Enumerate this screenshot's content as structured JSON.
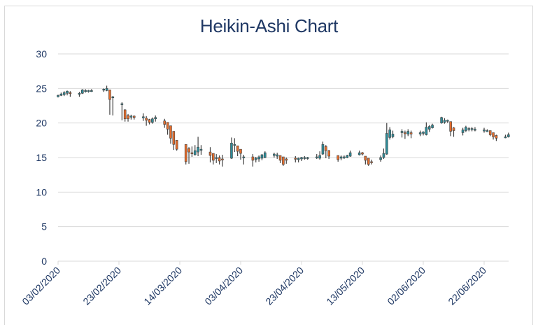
{
  "chart_data": {
    "type": "candlestick",
    "variant": "heikin-ashi",
    "title": "Heikin-Ashi Chart",
    "xlabel": "",
    "ylabel": "",
    "ylim": [
      0,
      30
    ],
    "yticks": [
      0,
      5,
      10,
      15,
      20,
      25,
      30
    ],
    "grid": true,
    "legend": "none",
    "x_tick_labels": [
      "03/02/2020",
      "23/02/2020",
      "14/03/2020",
      "03/04/2020",
      "23/04/2020",
      "13/05/2020",
      "02/06/2020",
      "22/06/2020"
    ],
    "x_start": "03/02/2020",
    "x_end_day_offset": 148,
    "colors": {
      "up": "#2e8b98",
      "down": "#e36c2c",
      "wick": "#404040",
      "grid": "#d9d9d9",
      "text": "#1f3864"
    },
    "candles_fields": [
      "day_offset",
      "open",
      "high",
      "low",
      "close"
    ],
    "candles": [
      [
        0,
        23.8,
        24.1,
        23.7,
        24.0
      ],
      [
        1,
        24.0,
        24.4,
        23.9,
        24.2
      ],
      [
        2,
        24.1,
        24.6,
        23.9,
        24.4
      ],
      [
        3,
        24.3,
        24.7,
        24.0,
        24.6
      ],
      [
        4,
        24.4,
        24.6,
        23.8,
        24.3
      ],
      [
        7,
        24.2,
        24.5,
        23.8,
        24.3
      ],
      [
        8,
        24.3,
        24.9,
        24.2,
        24.8
      ],
      [
        9,
        24.6,
        24.9,
        24.4,
        24.7
      ],
      [
        10,
        24.6,
        24.8,
        24.4,
        24.7
      ],
      [
        11,
        24.6,
        24.9,
        24.5,
        24.7
      ],
      [
        15,
        24.8,
        25.0,
        24.5,
        24.9
      ],
      [
        16,
        24.7,
        25.4,
        24.6,
        25.0
      ],
      [
        17,
        24.8,
        24.8,
        21.2,
        23.4
      ],
      [
        18,
        23.8,
        23.9,
        21.1,
        23.8
      ],
      [
        21,
        22.8,
        23.0,
        20.4,
        22.8
      ],
      [
        22,
        21.9,
        22.0,
        20.2,
        20.6
      ],
      [
        23,
        21.1,
        21.3,
        20.2,
        20.6
      ],
      [
        24,
        20.9,
        21.2,
        20.5,
        21.0
      ],
      [
        25,
        21.0,
        21.1,
        20.5,
        20.8
      ],
      [
        28,
        20.9,
        21.4,
        20.3,
        20.9
      ],
      [
        29,
        20.7,
        21.0,
        19.6,
        20.4
      ],
      [
        30,
        20.5,
        20.6,
        19.8,
        20.1
      ],
      [
        31,
        20.1,
        20.8,
        19.9,
        20.6
      ],
      [
        32,
        20.6,
        21.1,
        20.2,
        20.8
      ],
      [
        35,
        20.3,
        20.6,
        19.3,
        19.8
      ],
      [
        36,
        20.1,
        20.1,
        18.3,
        19.1
      ],
      [
        37,
        19.6,
        19.6,
        17.0,
        17.8
      ],
      [
        38,
        18.8,
        18.8,
        16.1,
        16.9
      ],
      [
        39,
        17.5,
        17.5,
        16.0,
        16.2
      ],
      [
        42,
        16.9,
        16.9,
        14.0,
        14.4
      ],
      [
        43,
        16.3,
        16.5,
        14.1,
        15.8
      ],
      [
        44,
        15.7,
        16.6,
        15.1,
        15.6
      ],
      [
        45,
        15.4,
        16.8,
        15.3,
        16.0
      ],
      [
        46,
        15.8,
        18.0,
        15.2,
        16.5
      ],
      [
        47,
        16.2,
        16.8,
        15.4,
        16.2
      ],
      [
        50,
        15.8,
        16.5,
        14.3,
        15.3
      ],
      [
        51,
        15.6,
        15.6,
        14.0,
        14.6
      ],
      [
        52,
        15.0,
        15.5,
        14.2,
        15.0
      ],
      [
        53,
        15.0,
        15.3,
        14.0,
        14.5
      ],
      [
        54,
        14.8,
        15.4,
        13.7,
        14.7
      ],
      [
        57,
        14.9,
        17.9,
        14.8,
        17.1
      ],
      [
        58,
        16.9,
        17.8,
        15.8,
        16.9
      ],
      [
        59,
        16.7,
        16.7,
        15.2,
        15.9
      ],
      [
        60,
        16.2,
        16.2,
        14.7,
        15.6
      ],
      [
        61,
        15.1,
        15.4,
        14.0,
        15.1
      ],
      [
        64,
        15.1,
        15.5,
        13.7,
        14.6
      ],
      [
        65,
        14.7,
        15.1,
        14.3,
        14.9
      ],
      [
        66,
        14.8,
        15.3,
        14.4,
        15.1
      ],
      [
        67,
        14.9,
        15.5,
        14.6,
        15.4
      ],
      [
        68,
        15.0,
        15.9,
        14.9,
        15.7
      ],
      [
        71,
        15.3,
        15.7,
        15.0,
        15.5
      ],
      [
        72,
        15.2,
        15.7,
        14.8,
        15.4
      ],
      [
        73,
        15.3,
        15.3,
        14.2,
        14.6
      ],
      [
        74,
        15.1,
        15.1,
        13.8,
        14.0
      ],
      [
        75,
        14.8,
        15.0,
        14.1,
        14.6
      ],
      [
        78,
        14.9,
        15.2,
        14.3,
        14.8
      ],
      [
        79,
        14.7,
        15.0,
        14.3,
        14.9
      ],
      [
        80,
        14.8,
        15.1,
        14.5,
        15.0
      ],
      [
        81,
        14.9,
        15.2,
        14.7,
        15.0
      ],
      [
        82,
        14.9,
        15.1,
        14.7,
        15.0
      ],
      [
        85,
        15.0,
        15.5,
        14.8,
        15.1
      ],
      [
        86,
        14.9,
        15.9,
        14.7,
        15.3
      ],
      [
        87,
        15.5,
        17.3,
        15.4,
        16.9
      ],
      [
        88,
        16.6,
        16.8,
        14.9,
        16.0
      ],
      [
        89,
        16.0,
        16.1,
        14.8,
        15.2
      ],
      [
        92,
        15.3,
        15.3,
        14.4,
        14.7
      ],
      [
        93,
        14.9,
        15.3,
        14.6,
        15.1
      ],
      [
        94,
        15.0,
        15.3,
        14.8,
        15.1
      ],
      [
        95,
        15.0,
        15.4,
        14.9,
        15.3
      ],
      [
        96,
        15.2,
        16.0,
        15.1,
        15.7
      ],
      [
        99,
        15.4,
        16.0,
        15.3,
        15.7
      ],
      [
        100,
        15.7,
        15.8,
        15.3,
        15.5
      ],
      [
        101,
        15.2,
        15.2,
        14.0,
        14.6
      ],
      [
        102,
        14.9,
        14.9,
        13.8,
        14.0
      ],
      [
        103,
        14.4,
        14.7,
        14.0,
        14.3
      ],
      [
        106,
        14.7,
        15.3,
        14.4,
        15.0
      ],
      [
        107,
        15.0,
        16.3,
        14.8,
        15.6
      ],
      [
        108,
        15.5,
        20.0,
        15.4,
        18.5
      ],
      [
        109,
        17.9,
        19.4,
        17.6,
        19.0
      ],
      [
        110,
        18.0,
        18.9,
        17.8,
        18.4
      ],
      [
        113,
        18.6,
        19.1,
        17.9,
        18.8
      ],
      [
        114,
        18.6,
        18.9,
        17.7,
        18.5
      ],
      [
        115,
        18.4,
        19.1,
        18.1,
        18.8
      ],
      [
        116,
        18.6,
        18.9,
        17.8,
        18.4
      ],
      [
        119,
        18.4,
        18.9,
        18.1,
        18.6
      ],
      [
        120,
        18.5,
        18.8,
        18.2,
        18.7
      ],
      [
        121,
        18.3,
        20.1,
        18.2,
        19.4
      ],
      [
        122,
        19.1,
        19.7,
        18.7,
        19.5
      ],
      [
        123,
        19.3,
        19.9,
        19.2,
        19.7
      ],
      [
        126,
        20.0,
        20.9,
        19.9,
        20.8
      ],
      [
        127,
        20.1,
        20.7,
        19.9,
        20.4
      ],
      [
        128,
        20.3,
        20.5,
        20.0,
        20.4
      ],
      [
        129,
        20.2,
        20.2,
        18.1,
        18.8
      ],
      [
        130,
        19.3,
        19.4,
        18.0,
        18.9
      ],
      [
        133,
        18.6,
        19.3,
        18.2,
        19.0
      ],
      [
        134,
        18.9,
        19.6,
        18.7,
        19.4
      ],
      [
        135,
        19.1,
        19.4,
        18.8,
        19.2
      ],
      [
        136,
        19.1,
        19.4,
        18.8,
        19.2
      ],
      [
        137,
        19.0,
        19.4,
        18.8,
        19.1
      ],
      [
        140,
        19.0,
        19.3,
        18.6,
        19.0
      ],
      [
        141,
        18.9,
        19.1,
        18.7,
        18.9
      ],
      [
        142,
        18.9,
        18.9,
        18.1,
        18.3
      ],
      [
        143,
        18.6,
        18.6,
        17.6,
        18.0
      ],
      [
        144,
        18.2,
        18.3,
        17.4,
        17.8
      ],
      [
        147,
        18.0,
        18.3,
        17.8,
        18.0
      ],
      [
        148,
        18.0,
        18.6,
        17.9,
        18.3
      ]
    ]
  }
}
